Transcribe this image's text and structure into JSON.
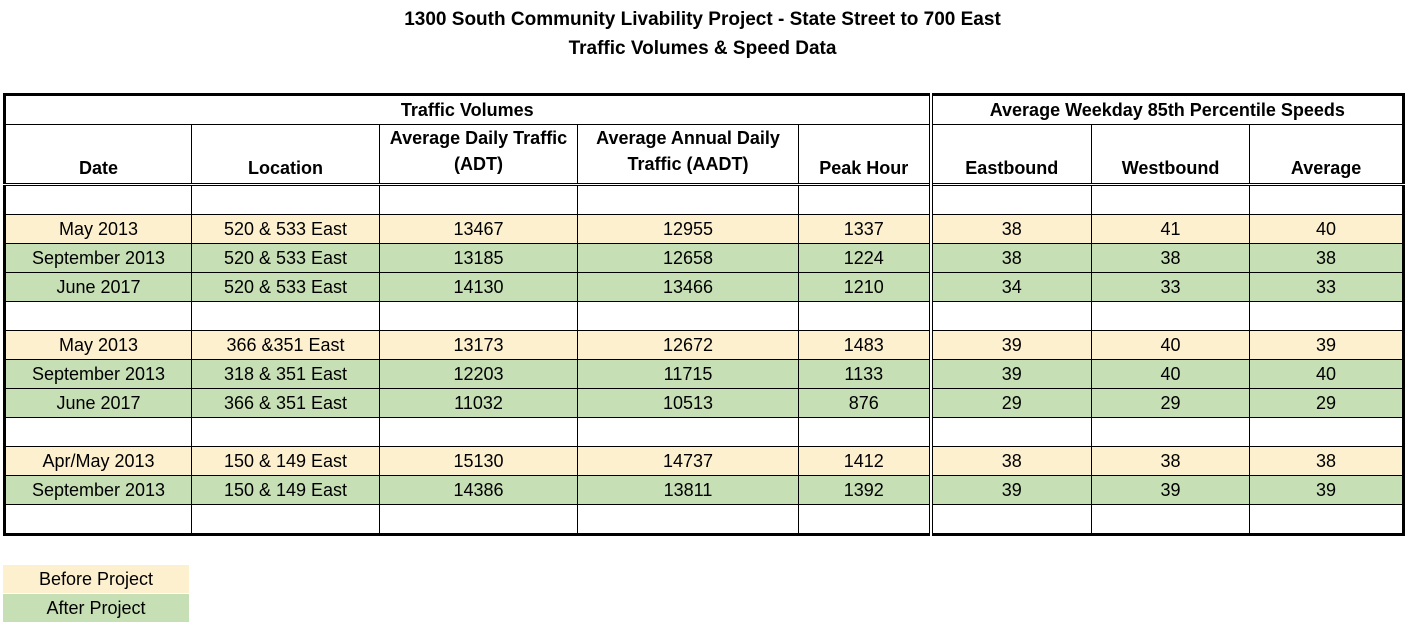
{
  "title": {
    "line1": "1300 South Community Livability Project - State Street to 700 East",
    "line2": "Traffic Volumes & Speed Data"
  },
  "table": {
    "group_headers": {
      "volumes": "Traffic Volumes",
      "speeds": "Average Weekday 85th Percentile Speeds"
    },
    "columns": {
      "date": "Date",
      "location": "Location",
      "adt": "Average Daily Traffic (ADT)",
      "aadt": "Average Annual Daily Traffic (AADT)",
      "peak": "Peak Hour",
      "eastbound": "Eastbound",
      "westbound": "Westbound",
      "average": "Average"
    },
    "rows": [
      {
        "date": "May 2013",
        "location": "520 & 533 East",
        "adt": "13467",
        "aadt": "12955",
        "peak": "1337",
        "eb": "38",
        "wb": "41",
        "avg": "40",
        "period": "before"
      },
      {
        "date": "September 2013",
        "location": "520 & 533 East",
        "adt": "13185",
        "aadt": "12658",
        "peak": "1224",
        "eb": "38",
        "wb": "38",
        "avg": "38",
        "period": "after"
      },
      {
        "date": "June 2017",
        "location": "520 & 533 East",
        "adt": "14130",
        "aadt": "13466",
        "peak": "1210",
        "eb": "34",
        "wb": "33",
        "avg": "33",
        "period": "after"
      },
      {
        "date": "May 2013",
        "location": "366 &351 East",
        "adt": "13173",
        "aadt": "12672",
        "peak": "1483",
        "eb": "39",
        "wb": "40",
        "avg": "39",
        "period": "before"
      },
      {
        "date": "September 2013",
        "location": "318 & 351 East",
        "adt": "12203",
        "aadt": "11715",
        "peak": "1133",
        "eb": "39",
        "wb": "40",
        "avg": "40",
        "period": "after"
      },
      {
        "date": "June 2017",
        "location": "366 & 351 East",
        "adt": "11032",
        "aadt": "10513",
        "peak": "876",
        "eb": "29",
        "wb": "29",
        "avg": "29",
        "period": "after"
      },
      {
        "date": "Apr/May 2013",
        "location": "150 & 149 East",
        "adt": "15130",
        "aadt": "14737",
        "peak": "1412",
        "eb": "38",
        "wb": "38",
        "avg": "38",
        "period": "before"
      },
      {
        "date": "September 2013",
        "location": "150 & 149 East",
        "adt": "14386",
        "aadt": "13811",
        "peak": "1392",
        "eb": "39",
        "wb": "39",
        "avg": "39",
        "period": "after"
      }
    ]
  },
  "legend": {
    "before": "Before Project",
    "after": "After Project"
  },
  "colors": {
    "before": "#fdf0cf",
    "after": "#c6dfb4"
  }
}
